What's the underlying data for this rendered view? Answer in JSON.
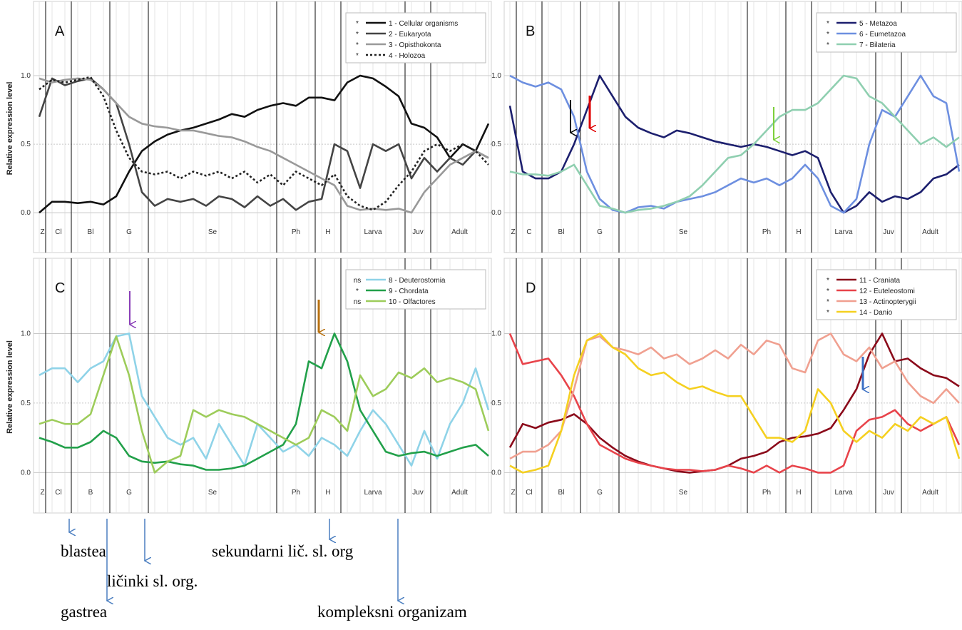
{
  "chart_data": [
    {
      "type": "line",
      "label": "A",
      "y_label": "Relative expression level",
      "stages": [
        "Z",
        "Cl",
        "Bl",
        "G",
        "Se",
        "Ph",
        "H",
        "Larva",
        "Juv",
        "Adult"
      ],
      "stage_bounds": [
        0.5,
        2.5,
        5.5,
        8.5,
        18.5,
        21.5,
        23.5,
        28.5,
        30.5
      ],
      "xlim": [
        0,
        35
      ],
      "ylim": [
        -0.27,
        1.5
      ],
      "yticks": [
        {
          "value": 0,
          "label": "0.0"
        },
        {
          "value": 0.5,
          "label": "0.5"
        },
        {
          "value": 1,
          "label": "1.0"
        }
      ],
      "series": [
        {
          "name": "1 - Cellular organisms",
          "marker": "*",
          "color": "#111111",
          "values": [
            0,
            0.08,
            0.08,
            0.07,
            0.08,
            0.06,
            0.12,
            0.3,
            0.45,
            0.52,
            0.57,
            0.6,
            0.62,
            0.65,
            0.68,
            0.72,
            0.7,
            0.75,
            0.78,
            0.8,
            0.78,
            0.84,
            0.84,
            0.82,
            0.95,
            1.0,
            0.98,
            0.92,
            0.85,
            0.65,
            0.62,
            0.55,
            0.4,
            0.5,
            0.45,
            0.65
          ]
        },
        {
          "name": "2 - Eukaryota",
          "marker": "*",
          "color": "#444444",
          "values": [
            0.7,
            0.98,
            0.93,
            0.96,
            0.98,
            0.9,
            0.8,
            0.5,
            0.15,
            0.05,
            0.1,
            0.08,
            0.1,
            0.05,
            0.12,
            0.1,
            0.04,
            0.12,
            0.05,
            0.1,
            0.02,
            0.08,
            0.1,
            0.5,
            0.45,
            0.18,
            0.5,
            0.45,
            0.5,
            0.25,
            0.4,
            0.3,
            0.4,
            0.35,
            0.45,
            0.4
          ]
        },
        {
          "name": "3 - Opisthokonta",
          "marker": "*",
          "color": "#999999",
          "values": [
            0.98,
            0.95,
            0.97,
            0.98,
            0.97,
            0.9,
            0.8,
            0.7,
            0.65,
            0.63,
            0.62,
            0.6,
            0.6,
            0.58,
            0.56,
            0.55,
            0.52,
            0.48,
            0.45,
            0.4,
            0.35,
            0.3,
            0.25,
            0.2,
            0.05,
            0.02,
            0.03,
            0.02,
            0.03,
            0.0,
            0.15,
            0.25,
            0.35,
            0.4,
            0.45,
            0.4
          ]
        },
        {
          "name": "4 - Holozoa",
          "marker": "*",
          "color": "#222222",
          "dash": "dotted",
          "values": [
            0.9,
            0.97,
            0.95,
            0.97,
            0.99,
            0.85,
            0.6,
            0.4,
            0.3,
            0.28,
            0.3,
            0.25,
            0.3,
            0.27,
            0.3,
            0.25,
            0.3,
            0.22,
            0.28,
            0.2,
            0.3,
            0.25,
            0.2,
            0.28,
            0.12,
            0.05,
            0.02,
            0.08,
            0.2,
            0.3,
            0.45,
            0.5,
            0.45,
            0.5,
            0.45,
            0.35
          ]
        }
      ]
    },
    {
      "type": "line",
      "label": "B",
      "stages": [
        "Z",
        "C",
        "Bl",
        "G",
        "Se",
        "Ph",
        "H",
        "Larva",
        "Juv",
        "Adult"
      ],
      "stage_bounds": [
        0.5,
        2.5,
        5.5,
        8.5,
        18.5,
        21.5,
        23.5,
        28.5,
        30.5
      ],
      "xlim": [
        0,
        35
      ],
      "ylim": [
        -0.27,
        1.5
      ],
      "yticks": [
        {
          "value": 0,
          "label": "0.0"
        },
        {
          "value": 0.5,
          "label": "0.5"
        },
        {
          "value": 1,
          "label": "1.0"
        }
      ],
      "series": [
        {
          "name": "5 - Metazoa",
          "marker": "*",
          "color": "#1c1f6e",
          "values": [
            0.78,
            0.3,
            0.25,
            0.25,
            0.3,
            0.5,
            0.75,
            1.0,
            0.85,
            0.7,
            0.62,
            0.58,
            0.55,
            0.6,
            0.58,
            0.55,
            0.52,
            0.5,
            0.48,
            0.5,
            0.48,
            0.45,
            0.42,
            0.45,
            0.4,
            0.15,
            0.0,
            0.05,
            0.15,
            0.08,
            0.12,
            0.1,
            0.15,
            0.25,
            0.28,
            0.35
          ]
        },
        {
          "name": "6 - Eumetazoa",
          "marker": "*",
          "color": "#6d8fe0",
          "values": [
            1.0,
            0.95,
            0.92,
            0.95,
            0.9,
            0.7,
            0.3,
            0.1,
            0.02,
            0.0,
            0.04,
            0.05,
            0.03,
            0.08,
            0.1,
            0.12,
            0.15,
            0.2,
            0.25,
            0.22,
            0.25,
            0.2,
            0.25,
            0.35,
            0.25,
            0.05,
            0.0,
            0.1,
            0.5,
            0.75,
            0.7,
            0.85,
            1.0,
            0.85,
            0.8,
            0.3
          ]
        },
        {
          "name": "7 - Bilateria",
          "marker": "*",
          "color": "#8fcfb0",
          "values": [
            0.3,
            0.28,
            0.28,
            0.27,
            0.3,
            0.35,
            0.2,
            0.05,
            0.03,
            0.0,
            0.02,
            0.03,
            0.05,
            0.08,
            0.12,
            0.2,
            0.3,
            0.4,
            0.42,
            0.5,
            0.6,
            0.7,
            0.75,
            0.75,
            0.8,
            0.9,
            1.0,
            0.98,
            0.85,
            0.8,
            0.7,
            0.6,
            0.5,
            0.55,
            0.48,
            0.55
          ]
        }
      ]
    },
    {
      "type": "line",
      "label": "C",
      "y_label": "Relative expression level",
      "stages": [
        "Z",
        "Cl",
        "B",
        "G",
        "Se",
        "Ph",
        "H",
        "Larva",
        "Juv",
        "Adult"
      ],
      "stage_bounds": [
        0.5,
        2.5,
        5.5,
        8.5,
        18.5,
        21.5,
        23.5,
        28.5,
        30.5
      ],
      "xlim": [
        0,
        35
      ],
      "ylim": [
        -0.27,
        1.5
      ],
      "yticks": [
        {
          "value": 0,
          "label": "0.0"
        },
        {
          "value": 0.5,
          "label": "0.5"
        },
        {
          "value": 1,
          "label": "1.0"
        }
      ],
      "series": [
        {
          "name": "8 - Deuterostomia",
          "marker": "ns",
          "color": "#8fd3e8",
          "values": [
            0.7,
            0.75,
            0.75,
            0.65,
            0.75,
            0.8,
            0.98,
            1.0,
            0.55,
            0.4,
            0.25,
            0.2,
            0.25,
            0.1,
            0.35,
            0.2,
            0.05,
            0.35,
            0.25,
            0.15,
            0.2,
            0.12,
            0.25,
            0.2,
            0.12,
            0.3,
            0.45,
            0.35,
            0.2,
            0.05,
            0.3,
            0.1,
            0.35,
            0.5,
            0.75,
            0.45
          ]
        },
        {
          "name": "9 - Chordata",
          "marker": "*",
          "color": "#22a04a",
          "values": [
            0.25,
            0.22,
            0.18,
            0.18,
            0.22,
            0.3,
            0.25,
            0.12,
            0.08,
            0.07,
            0.08,
            0.06,
            0.05,
            0.02,
            0.02,
            0.03,
            0.05,
            0.1,
            0.15,
            0.2,
            0.35,
            0.8,
            0.75,
            1.0,
            0.8,
            0.45,
            0.3,
            0.15,
            0.12,
            0.14,
            0.15,
            0.12,
            0.15,
            0.18,
            0.2,
            0.12
          ]
        },
        {
          "name": "10 - Olfactores",
          "marker": "ns",
          "color": "#9dcc5a",
          "values": [
            0.35,
            0.38,
            0.35,
            0.35,
            0.42,
            0.7,
            0.98,
            0.7,
            0.3,
            0.0,
            0.08,
            0.12,
            0.45,
            0.4,
            0.45,
            0.42,
            0.4,
            0.35,
            0.3,
            0.25,
            0.2,
            0.25,
            0.45,
            0.4,
            0.3,
            0.7,
            0.55,
            0.6,
            0.72,
            0.68,
            0.75,
            0.65,
            0.68,
            0.65,
            0.6,
            0.3
          ]
        }
      ]
    },
    {
      "type": "line",
      "label": "D",
      "stages": [
        "Z",
        "Cl",
        "Bl",
        "G",
        "Se",
        "Ph",
        "H",
        "Larva",
        "Juv",
        "Adult"
      ],
      "stage_bounds": [
        0.5,
        2.5,
        5.5,
        8.5,
        18.5,
        21.5,
        23.5,
        28.5,
        30.5
      ],
      "xlim": [
        0,
        35
      ],
      "ylim": [
        -0.27,
        1.5
      ],
      "yticks": [
        {
          "value": 0,
          "label": "0.0"
        },
        {
          "value": 0.5,
          "label": "0.5"
        },
        {
          "value": 1,
          "label": "1.0"
        }
      ],
      "series": [
        {
          "name": "11 - Craniata",
          "marker": "*",
          "color": "#8b0a1a",
          "values": [
            0.18,
            0.35,
            0.32,
            0.36,
            0.38,
            0.42,
            0.35,
            0.25,
            0.18,
            0.12,
            0.08,
            0.05,
            0.03,
            0.01,
            0.0,
            0.01,
            0.02,
            0.05,
            0.1,
            0.12,
            0.15,
            0.22,
            0.25,
            0.26,
            0.28,
            0.32,
            0.45,
            0.6,
            0.85,
            1.0,
            0.8,
            0.82,
            0.75,
            0.7,
            0.68,
            0.62
          ]
        },
        {
          "name": "12 - Euteleostomi",
          "marker": "*",
          "color": "#e8434a",
          "values": [
            1.0,
            0.78,
            0.8,
            0.82,
            0.7,
            0.55,
            0.35,
            0.2,
            0.15,
            0.1,
            0.07,
            0.05,
            0.03,
            0.02,
            0.02,
            0.01,
            0.02,
            0.05,
            0.03,
            0.0,
            0.05,
            0.0,
            0.05,
            0.03,
            0.0,
            0.0,
            0.05,
            0.3,
            0.38,
            0.4,
            0.45,
            0.35,
            0.3,
            0.35,
            0.4,
            0.2
          ]
        },
        {
          "name": "13 - Actinopterygii",
          "marker": "*",
          "color": "#f0a090",
          "values": [
            0.1,
            0.15,
            0.15,
            0.2,
            0.3,
            0.6,
            0.95,
            0.98,
            0.9,
            0.88,
            0.85,
            0.9,
            0.82,
            0.85,
            0.78,
            0.82,
            0.88,
            0.82,
            0.92,
            0.85,
            0.95,
            0.92,
            0.75,
            0.72,
            0.95,
            1.0,
            0.85,
            0.8,
            0.9,
            0.75,
            0.8,
            0.65,
            0.55,
            0.5,
            0.6,
            0.5
          ]
        },
        {
          "name": "14 - Danio",
          "marker": "*",
          "color": "#f5d020",
          "values": [
            0.05,
            0.0,
            0.02,
            0.05,
            0.3,
            0.7,
            0.95,
            1.0,
            0.9,
            0.85,
            0.75,
            0.7,
            0.72,
            0.65,
            0.6,
            0.62,
            0.58,
            0.55,
            0.55,
            0.4,
            0.25,
            0.25,
            0.22,
            0.3,
            0.6,
            0.5,
            0.3,
            0.22,
            0.3,
            0.25,
            0.35,
            0.3,
            0.4,
            0.35,
            0.4,
            0.1
          ]
        }
      ]
    }
  ],
  "annotations": [
    "blastea",
    "sekundarni lič. sl. org",
    "ličinki sl. org.",
    "gastrea",
    "kompleksni organizam"
  ]
}
